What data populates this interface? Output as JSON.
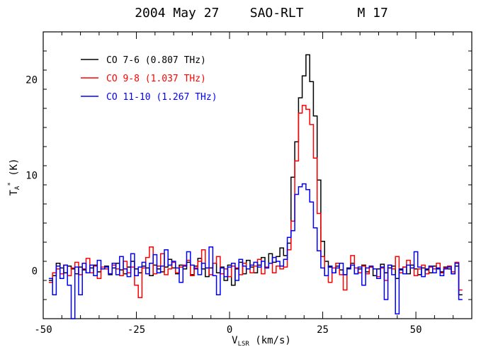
{
  "chart_data": {
    "type": "line",
    "title": "2004 May 27    SAO-RLT       M 17",
    "xlabel": {
      "main": "V",
      "sub": "LSR",
      "rest": " (km/s)"
    },
    "ylabel": {
      "main": "T",
      "sub": "A",
      "sup": "*",
      "rest": " (K)"
    },
    "xlim": [
      -50,
      65
    ],
    "ylim": [
      -5,
      25
    ],
    "xticks": [
      -50,
      -25,
      0,
      25,
      50
    ],
    "yticks": [
      0,
      10,
      20
    ],
    "grid": false,
    "legend_position": "top-left",
    "series": [
      {
        "name": "CO 7-6 (0.807 THz)",
        "color": "#000000",
        "x": [
          -48,
          -47,
          -46,
          -45,
          -44,
          -43,
          -42,
          -41,
          -40,
          -39,
          -38,
          -37,
          -36,
          -35,
          -34,
          -33,
          -32,
          -31,
          -30,
          -29,
          -28,
          -27,
          -26,
          -25,
          -24,
          -23,
          -22,
          -21,
          -20,
          -19,
          -18,
          -17,
          -16,
          -15,
          -14,
          -13,
          -12,
          -11,
          -10,
          -9,
          -8,
          -7,
          -6,
          -5,
          -4,
          -3,
          -2,
          -1,
          0,
          1,
          2,
          3,
          4,
          5,
          6,
          7,
          8,
          9,
          10,
          11,
          12,
          13,
          14,
          15,
          16,
          17,
          18,
          19,
          20,
          21,
          22,
          23,
          24,
          25,
          26,
          27,
          28,
          29,
          30,
          31,
          32,
          33,
          34,
          35,
          36,
          37,
          38,
          39,
          40,
          41,
          42,
          43,
          44,
          45,
          46,
          47,
          48,
          49,
          50,
          51,
          52,
          53,
          54,
          55,
          56,
          57,
          58,
          59,
          60,
          61,
          62
        ],
        "y": [
          -1,
          -0.5,
          0.8,
          0.3,
          -0.2,
          0.5,
          0.2,
          -0.3,
          0.4,
          0.1,
          -0.2,
          0.3,
          0.6,
          -0.1,
          0.2,
          0.5,
          -0.4,
          0.3,
          0.8,
          0.1,
          -0.3,
          0.4,
          1.0,
          0.2,
          -0.2,
          0.5,
          0.3,
          -0.5,
          0.6,
          0.2,
          -0.1,
          0.4,
          1.2,
          0.3,
          -0.3,
          0.6,
          0.2,
          0.9,
          -0.4,
          0.5,
          1.3,
          0.2,
          -0.6,
          0.3,
          0.8,
          -0.2,
          0.4,
          -1.0,
          0.6,
          -1.5,
          0.2,
          0.9,
          -0.3,
          1.1,
          0.4,
          -0.2,
          0.6,
          1.4,
          0.3,
          1.8,
          0.9,
          1.5,
          2.4,
          1.6,
          2.9,
          9.8,
          13.5,
          18.1,
          20.4,
          22.6,
          19.8,
          16.2,
          9.5,
          3.1,
          1.0,
          0.4,
          -0.2,
          0.5,
          0.1,
          -0.4,
          0.3,
          0.8,
          -0.3,
          0.2,
          0.6,
          -0.1,
          0.4,
          -0.5,
          0.2,
          0.7,
          -0.2,
          0.3,
          0.5,
          -0.8,
          0.1,
          0.4,
          -0.3,
          0.6,
          0.2,
          -0.4,
          0.3,
          0.1,
          -0.2,
          0.5,
          0.2,
          -0.1,
          0.4,
          0.2,
          -0.3,
          0.5,
          -2.5
        ]
      },
      {
        "name": "CO 9-8 (1.037 THz)",
        "color": "#ff0000",
        "x": [
          -48,
          -47,
          -46,
          -45,
          -44,
          -43,
          -42,
          -41,
          -40,
          -39,
          -38,
          -37,
          -36,
          -35,
          -34,
          -33,
          -32,
          -31,
          -30,
          -29,
          -28,
          -27,
          -26,
          -25,
          -24,
          -23,
          -22,
          -21,
          -20,
          -19,
          -18,
          -17,
          -16,
          -15,
          -14,
          -13,
          -12,
          -11,
          -10,
          -9,
          -8,
          -7,
          -6,
          -5,
          -4,
          -3,
          -2,
          -1,
          0,
          1,
          2,
          3,
          4,
          5,
          6,
          7,
          8,
          9,
          10,
          11,
          12,
          13,
          14,
          15,
          16,
          17,
          18,
          19,
          20,
          21,
          22,
          23,
          24,
          25,
          26,
          27,
          28,
          29,
          30,
          31,
          32,
          33,
          34,
          35,
          36,
          37,
          38,
          39,
          40,
          41,
          42,
          43,
          44,
          45,
          46,
          47,
          48,
          49,
          50,
          51,
          52,
          53,
          54,
          55,
          56,
          57,
          58,
          59,
          60,
          61,
          62
        ],
        "y": [
          -1.2,
          -0.2,
          0.2,
          -0.3,
          0.6,
          -0.5,
          0.3,
          0.9,
          -0.4,
          0.2,
          1.3,
          -0.2,
          0.5,
          -0.8,
          0.4,
          0.2,
          -0.3,
          0.6,
          0.2,
          -0.5,
          1.0,
          -0.2,
          0.4,
          -1.5,
          -2.8,
          0.3,
          1.4,
          2.5,
          -0.3,
          0.5,
          1.8,
          -0.4,
          0.2,
          0.9,
          -0.2,
          0.4,
          0.6,
          1.1,
          -0.5,
          0.3,
          1.0,
          2.2,
          0.3,
          -0.4,
          0.8,
          1.5,
          -0.3,
          0.2,
          -0.6,
          0.5,
          0.3,
          -0.4,
          0.8,
          0.2,
          -0.2,
          0.5,
          1.2,
          -0.3,
          0.4,
          0.8,
          -0.2,
          0.5,
          0.2,
          0.4,
          2.2,
          5.2,
          11.5,
          16.5,
          17.3,
          16.9,
          15.3,
          11.8,
          6.0,
          1.5,
          -0.5,
          -1.2,
          0.3,
          0.8,
          -0.4,
          -2.0,
          0.2,
          1.6,
          0.3,
          -0.2,
          0.5,
          -0.3,
          0.4,
          0.2,
          -0.6,
          0.3,
          -1.0,
          0.6,
          0.2,
          1.5,
          -0.2,
          0.4,
          1.1,
          0.3,
          -0.5,
          0.2,
          0.6,
          -0.3,
          0.4,
          0.2,
          0.8,
          -0.2,
          0.3,
          0.5,
          -0.1,
          0.9,
          -2.0
        ]
      },
      {
        "name": "CO 11-10 (1.267 THz)",
        "color": "#0000ff",
        "x": [
          -48,
          -47,
          -46,
          -45,
          -44,
          -43,
          -42,
          -41,
          -40,
          -39,
          -38,
          -37,
          -36,
          -35,
          -34,
          -33,
          -32,
          -31,
          -30,
          -29,
          -28,
          -27,
          -26,
          -25,
          -24,
          -23,
          -22,
          -21,
          -20,
          -19,
          -18,
          -17,
          -16,
          -15,
          -14,
          -13,
          -12,
          -11,
          -10,
          -9,
          -8,
          -7,
          -6,
          -5,
          -4,
          -3,
          -2,
          -1,
          0,
          1,
          2,
          3,
          4,
          5,
          6,
          7,
          8,
          9,
          10,
          11,
          12,
          13,
          14,
          15,
          16,
          17,
          18,
          19,
          20,
          21,
          22,
          23,
          24,
          25,
          26,
          27,
          28,
          29,
          30,
          31,
          32,
          33,
          34,
          35,
          36,
          37,
          38,
          39,
          40,
          41,
          42,
          43,
          44,
          45,
          46,
          47,
          48,
          49,
          50,
          51,
          52,
          53,
          54,
          55,
          56,
          57,
          58,
          59,
          60,
          61,
          62
        ],
        "y": [
          -0.8,
          -2.5,
          0.5,
          -0.8,
          0.6,
          -1.5,
          -5.0,
          0.4,
          -2.5,
          0.8,
          -0.2,
          0.6,
          -0.5,
          1.1,
          0.2,
          0.4,
          -0.3,
          0.8,
          -0.4,
          1.5,
          0.2,
          -0.6,
          1.8,
          -0.5,
          0.4,
          0.9,
          -0.3,
          0.8,
          1.7,
          -0.2,
          0.5,
          2.2,
          0.6,
          1.0,
          0.3,
          -1.2,
          0.5,
          2.0,
          0.6,
          0.2,
          -0.4,
          0.8,
          0.3,
          2.5,
          -0.5,
          -2.5,
          0.3,
          -0.6,
          0.4,
          0.8,
          -1.0,
          1.2,
          0.5,
          0.2,
          0.6,
          0.9,
          0.4,
          1.0,
          0.3,
          0.8,
          1.4,
          1.0,
          0.5,
          1.2,
          3.5,
          4.2,
          8.0,
          8.8,
          9.1,
          8.5,
          7.2,
          4.5,
          2.1,
          0.3,
          -0.5,
          0.5,
          -0.2,
          0.3,
          0.8,
          -0.4,
          0.2,
          0.6,
          -0.3,
          0.4,
          -1.5,
          0.3,
          0.5,
          0.2,
          -0.8,
          0.4,
          -3.0,
          0.6,
          -0.4,
          -4.5,
          0.2,
          -0.3,
          0.6,
          0.3,
          2.0,
          0.4,
          -0.6,
          0.2,
          0.5,
          -0.2,
          0.3,
          -0.5,
          0.2,
          0.4,
          -0.3,
          0.8,
          -3.0
        ]
      }
    ]
  }
}
